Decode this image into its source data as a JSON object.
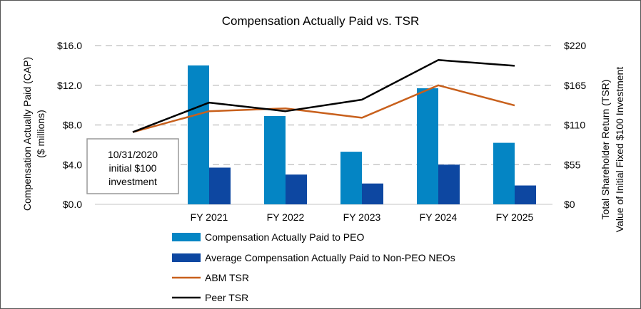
{
  "chart_data": {
    "type": "bar",
    "title": "Compensation Actually Paid vs. TSR",
    "categories": [
      "FY 2021",
      "FY 2022",
      "FY 2023",
      "FY 2024",
      "FY 2025"
    ],
    "series": [
      {
        "name": "Compensation Actually Paid to PEO",
        "kind": "bar",
        "axis": "left",
        "color": "#0485C4",
        "values": [
          14.0,
          8.9,
          5.3,
          11.7,
          6.2
        ]
      },
      {
        "name": "Average Compensation Actually Paid to Non-PEO NEOs",
        "kind": "bar",
        "axis": "left",
        "color": "#0D47A1",
        "values": [
          3.7,
          3.0,
          2.1,
          4.0,
          1.9
        ]
      },
      {
        "name": "ABM TSR",
        "kind": "line",
        "axis": "right",
        "color": "#C8601C",
        "x": [
          "10/31/2020",
          "FY 2021",
          "FY 2022",
          "FY 2023",
          "FY 2024",
          "FY 2025"
        ],
        "values": [
          100,
          129,
          133,
          120,
          165,
          137
        ]
      },
      {
        "name": "Peer TSR",
        "kind": "line",
        "axis": "right",
        "color": "#000000",
        "x": [
          "10/31/2020",
          "FY 2021",
          "FY 2022",
          "FY 2023",
          "FY 2024",
          "FY 2025"
        ],
        "values": [
          100,
          141,
          129,
          145,
          200,
          192
        ]
      }
    ],
    "y_left": {
      "label": "Compensation Actually Paid (CAP)",
      "sublabel": "($ millions)",
      "range": [
        0,
        16
      ],
      "ticks": [
        0,
        4,
        8,
        12,
        16
      ],
      "tick_labels": [
        "$0.0",
        "$4.0",
        "$8.0",
        "$12.0",
        "$16.0"
      ]
    },
    "y_right": {
      "label": "Total Shareholder Return (TSR)",
      "sublabel": "Value of Initial Fixed $100 Investment",
      "range": [
        0,
        220
      ],
      "ticks": [
        0,
        55,
        110,
        165,
        220
      ],
      "tick_labels": [
        "$0",
        "$55",
        "$110",
        "$165",
        "$220"
      ]
    },
    "grid": true,
    "legend_position": "bottom",
    "annotation": {
      "lines": [
        "10/31/2020",
        "initial $100",
        "investment"
      ]
    }
  }
}
